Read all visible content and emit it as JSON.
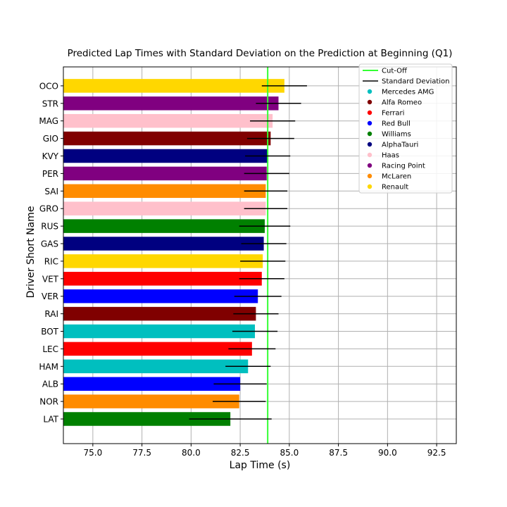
{
  "chart_data": {
    "type": "bar",
    "orientation": "horizontal",
    "title": "Predicted Lap Times with Standard Deviation on the Prediction at Beginning (Q1)",
    "xlabel": "Lap Time (s)",
    "ylabel": "Driver Short Name",
    "xlim": [
      73.5,
      93.5
    ],
    "xticks": [
      "75.0",
      "77.5",
      "80.0",
      "82.5",
      "85.0",
      "87.5",
      "90.0",
      "92.5"
    ],
    "xtick_values": [
      75.0,
      77.5,
      80.0,
      82.5,
      85.0,
      87.5,
      90.0,
      92.5
    ],
    "grid": true,
    "legend_position": "top-right",
    "cutoff": 83.9,
    "bars": [
      {
        "driver": "LAT",
        "team": "Williams",
        "value": 82.0,
        "std": 2.1
      },
      {
        "driver": "NOR",
        "team": "McLaren",
        "value": 82.45,
        "std": 1.35
      },
      {
        "driver": "ALB",
        "team": "Red Bull",
        "value": 82.5,
        "std": 1.35
      },
      {
        "driver": "HAM",
        "team": "Mercedes AMG",
        "value": 82.9,
        "std": 1.15
      },
      {
        "driver": "LEC",
        "team": "Ferrari",
        "value": 83.1,
        "std": 1.2
      },
      {
        "driver": "BOT",
        "team": "Mercedes AMG",
        "value": 83.25,
        "std": 1.15
      },
      {
        "driver": "RAI",
        "team": "Alfa Romeo",
        "value": 83.3,
        "std": 1.15
      },
      {
        "driver": "VER",
        "team": "Red Bull",
        "value": 83.4,
        "std": 1.2
      },
      {
        "driver": "VET",
        "team": "Ferrari",
        "value": 83.6,
        "std": 1.15
      },
      {
        "driver": "RIC",
        "team": "Renault",
        "value": 83.65,
        "std": 1.15
      },
      {
        "driver": "GAS",
        "team": "AlphaTauri",
        "value": 83.7,
        "std": 1.15
      },
      {
        "driver": "RUS",
        "team": "Williams",
        "value": 83.75,
        "std": 1.3
      },
      {
        "driver": "GRO",
        "team": "Haas",
        "value": 83.8,
        "std": 1.1
      },
      {
        "driver": "SAI",
        "team": "McLaren",
        "value": 83.8,
        "std": 1.1
      },
      {
        "driver": "PER",
        "team": "Racing Point",
        "value": 83.85,
        "std": 1.15
      },
      {
        "driver": "KVY",
        "team": "AlphaTauri",
        "value": 83.9,
        "std": 1.15
      },
      {
        "driver": "GIO",
        "team": "Alfa Romeo",
        "value": 84.05,
        "std": 1.2
      },
      {
        "driver": "MAG",
        "team": "Haas",
        "value": 84.15,
        "std": 1.15
      },
      {
        "driver": "STR",
        "team": "Racing Point",
        "value": 84.45,
        "std": 1.15
      },
      {
        "driver": "OCO",
        "team": "Renault",
        "value": 84.75,
        "std": 1.15
      }
    ],
    "legend": {
      "cutoff_label": "Cut-Off",
      "std_label": "Standard Deviation",
      "teams": [
        {
          "name": "Mercedes AMG",
          "color": "#00bfbf"
        },
        {
          "name": "Alfa Romeo",
          "color": "#800000"
        },
        {
          "name": "Ferrari",
          "color": "#ff0000"
        },
        {
          "name": "Red Bull",
          "color": "#0000ff"
        },
        {
          "name": "Williams",
          "color": "#008000"
        },
        {
          "name": "AlphaTauri",
          "color": "#000080"
        },
        {
          "name": "Haas",
          "color": "#ffc0cb"
        },
        {
          "name": "Racing Point",
          "color": "#800080"
        },
        {
          "name": "McLaren",
          "color": "#ff8c00"
        },
        {
          "name": "Renault",
          "color": "#ffd700"
        }
      ]
    },
    "colors": {
      "cutoff": "#33ff33",
      "error_bar": "#000000",
      "grid": "#b0b0b0"
    }
  }
}
